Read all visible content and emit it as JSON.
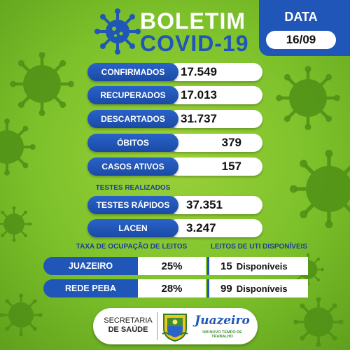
{
  "header": {
    "title_line1": "BOLETIM",
    "title_line2": "COVID-19",
    "date_label": "DATA",
    "date_value": "16/09"
  },
  "stats": [
    {
      "label": "CONFIRMADOS",
      "value": "17.549"
    },
    {
      "label": "RECUPERADOS",
      "value": "17.013"
    },
    {
      "label": "DESCARTADOS",
      "value": "31.737"
    },
    {
      "label": "ÓBITOS",
      "value": "379"
    },
    {
      "label": "CASOS ATIVOS",
      "value": "157"
    }
  ],
  "tests": {
    "section_title": "TESTES REALIZADOS",
    "items": [
      {
        "label": "TESTES RÁPIDOS",
        "value": "37.351"
      },
      {
        "label": "LACEN",
        "value": "3.247"
      }
    ]
  },
  "beds": {
    "occupancy_title": "TAXA DE OCUPAÇÃO DE LEITOS",
    "available_title": "LEITOS DE UTI DISPONÍVEIS",
    "rows": [
      {
        "label": "JUAZEIRO",
        "occupancy": "25%",
        "available_count": "15",
        "available_label": "Disponíveis"
      },
      {
        "label": "REDE PEBA",
        "occupancy": "28%",
        "available_count": "99",
        "available_label": "Disponíveis"
      }
    ]
  },
  "footer": {
    "secretaria_line1": "SECRETARIA",
    "secretaria_line2": "DE SAÚDE",
    "city_name": "Juazeiro",
    "city_slogan": "UM NOVO TEMPO DE TRABALHO"
  },
  "colors": {
    "background": "#7cc12a",
    "primary_blue": "#1f56b8",
    "dark_blue": "#1a3f94"
  }
}
